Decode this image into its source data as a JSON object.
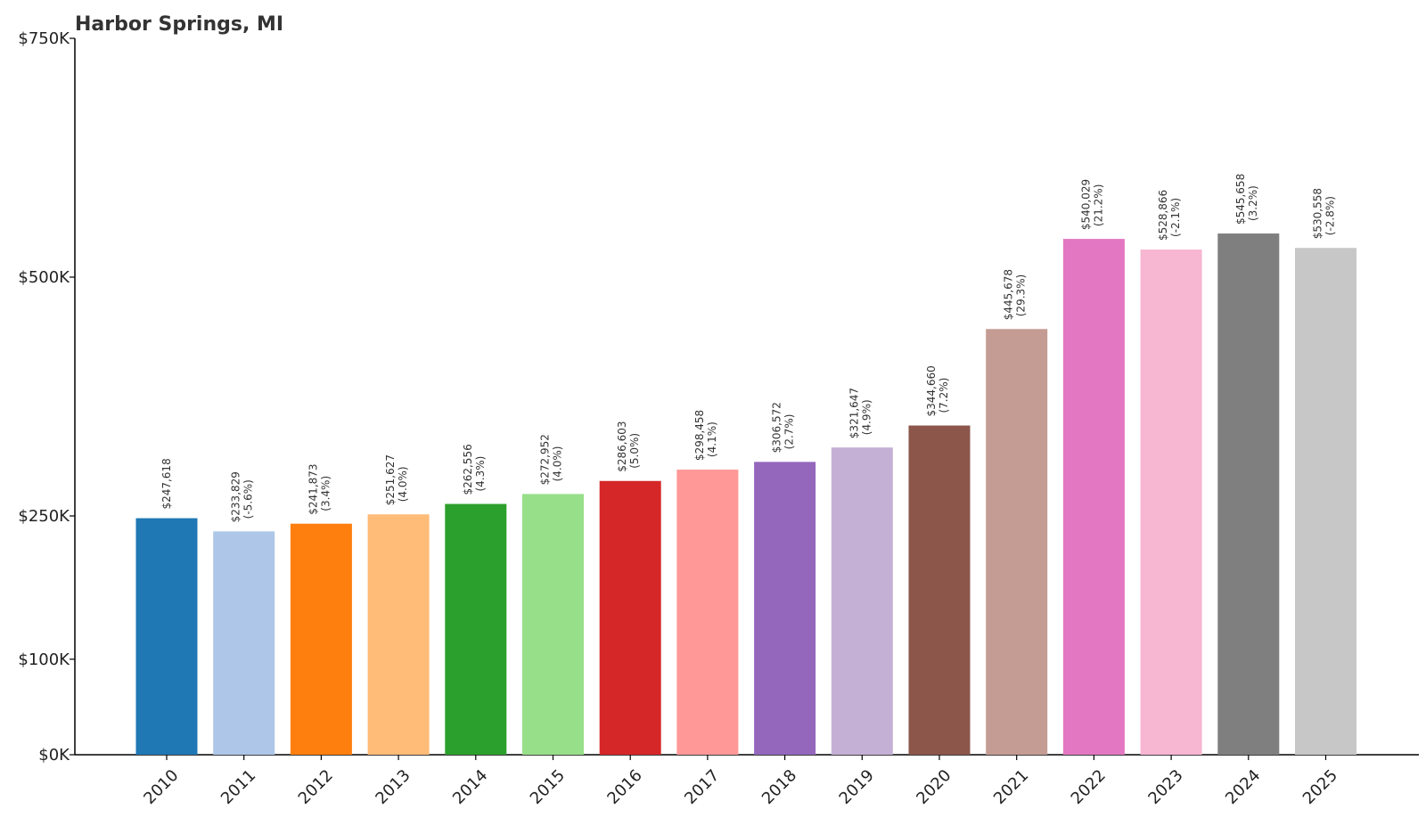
{
  "chart_data": {
    "type": "bar",
    "title": "Harbor Springs, MI",
    "xlabel": "",
    "ylabel": "",
    "categories": [
      "2010",
      "2011",
      "2012",
      "2013",
      "2014",
      "2015",
      "2016",
      "2017",
      "2018",
      "2019",
      "2020",
      "2021",
      "2022",
      "2023",
      "2024",
      "2025"
    ],
    "values": [
      247618,
      233829,
      241873,
      251627,
      262556,
      272952,
      286603,
      298458,
      306572,
      321647,
      344660,
      445678,
      540029,
      528866,
      545658,
      530558
    ],
    "data_labels": [
      "$247,618",
      "$233,829",
      "$241,873",
      "$251,627",
      "$262,556",
      "$272,952",
      "$286,603",
      "$298,458",
      "$306,572",
      "$321,647",
      "$344,660",
      "$445,678",
      "$540,029",
      "$528,866",
      "$545,658",
      "$530,558"
    ],
    "pct_labels": [
      "",
      "(-5.6%)",
      "(3.4%)",
      "(4.0%)",
      "(4.3%)",
      "(4.0%)",
      "(5.0%)",
      "(4.1%)",
      "(2.7%)",
      "(4.9%)",
      "(7.2%)",
      "(29.3%)",
      "(21.2%)",
      "(-2.1%)",
      "(3.2%)",
      "(-2.8%)"
    ],
    "colors": [
      "#1f77b4",
      "#aec7e8",
      "#ff7f0e",
      "#ffbb78",
      "#2ca02c",
      "#98df8a",
      "#d62728",
      "#ff9896",
      "#9467bd",
      "#c5b0d5",
      "#8c564b",
      "#c49c94",
      "#e377c2",
      "#f7b6d2",
      "#7f7f7f",
      "#c7c7c7"
    ],
    "y_ticks": [
      {
        "value": 0,
        "label": "$0K"
      },
      {
        "value": 100000,
        "label": "$100K"
      },
      {
        "value": 250000,
        "label": "$250K"
      },
      {
        "value": 500000,
        "label": "$500K"
      },
      {
        "value": 750000,
        "label": "$750K"
      }
    ],
    "ylim": [
      0,
      750000
    ],
    "grid": false,
    "legend": "none"
  }
}
